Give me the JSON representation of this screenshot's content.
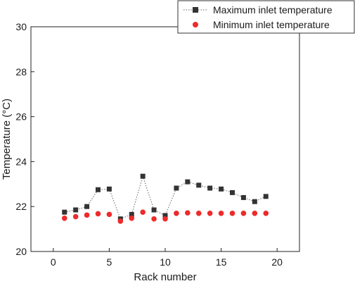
{
  "chart_data": {
    "type": "scatter",
    "xlabel": "Rack number",
    "ylabel": "Temperature (°C)",
    "xlim": [
      -2,
      22
    ],
    "ylim": [
      20,
      30
    ],
    "xticks": [
      0,
      5,
      10,
      15,
      20
    ],
    "yticks": [
      20,
      22,
      24,
      26,
      28,
      30
    ],
    "grid": false,
    "legend_position": "top-right",
    "x": [
      1,
      2,
      3,
      4,
      5,
      6,
      7,
      8,
      9,
      10,
      11,
      12,
      13,
      14,
      15,
      16,
      17,
      18,
      19
    ],
    "series": [
      {
        "name": "Maximum inlet temperature",
        "marker": "square",
        "connected": true,
        "color": "#333333",
        "line_color": "#666666",
        "values": [
          21.75,
          21.85,
          22.0,
          22.75,
          22.78,
          21.45,
          21.65,
          23.35,
          21.85,
          21.6,
          22.82,
          23.1,
          22.95,
          22.82,
          22.78,
          22.62,
          22.4,
          22.22,
          22.45
        ]
      },
      {
        "name": "Minimum inlet temperature",
        "marker": "circle",
        "connected": false,
        "color": "#ee2a2a",
        "values": [
          21.48,
          21.55,
          21.62,
          21.68,
          21.65,
          21.35,
          21.48,
          21.75,
          21.45,
          21.45,
          21.7,
          21.72,
          21.7,
          21.7,
          21.7,
          21.7,
          21.7,
          21.7,
          21.7
        ]
      }
    ]
  }
}
